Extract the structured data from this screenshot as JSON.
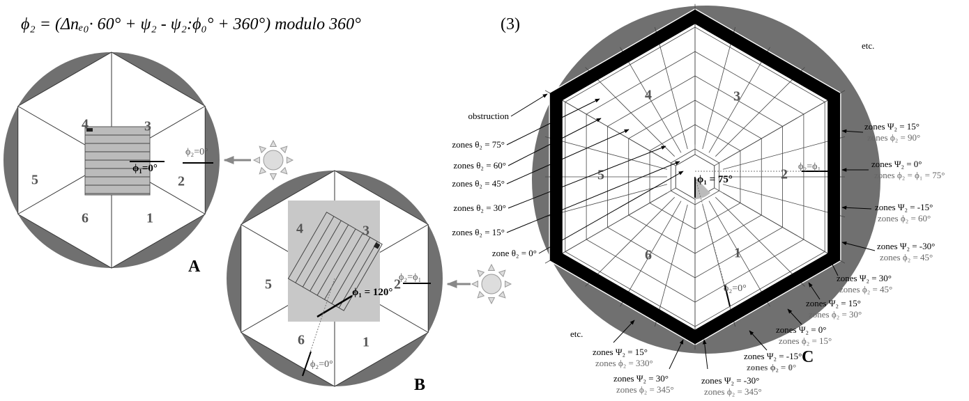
{
  "formula": {
    "expression": "ϕ₂ = (Δnₑ₀· 60° + ψ₂ - ψ₂:ϕ₀° + 360°) modulo 360°",
    "number": "(3)"
  },
  "panels": [
    {
      "letter": "A",
      "zones": [
        "1",
        "2",
        "3",
        "4",
        "5",
        "6"
      ],
      "phi1": "ϕ₁=0°",
      "phi2": "ϕ₂=0°"
    },
    {
      "letter": "B",
      "zones": [
        "1",
        "2",
        "3",
        "4",
        "5",
        "6"
      ],
      "phi1": "ϕ₁ = 120°",
      "phi2_ref": "ϕ₂=ϕ₁",
      "phi2": "ϕ₂=0°"
    },
    {
      "letter": "C",
      "zones": [
        "1",
        "2",
        "3",
        "4",
        "5",
        "6"
      ],
      "phi1": "ϕ₁ = 75°",
      "phi2_ref": "ϕ₂=ϕ₁",
      "phi2": "ϕ₂=0°",
      "left_labels": [
        "obstruction",
        "zones θ₂ = 75°",
        "zones θ₂ = 60°",
        "zones θ₂ = 45°",
        "zones θ₂ = 30°",
        "zones θ₂ = 15°",
        "zone θ₂ = 0°"
      ],
      "etc": [
        "etc.",
        "etc."
      ],
      "right_labels": [
        {
          "psi": "zones Ψ₂ = 15°",
          "phi": "zones ϕ₂ = 90°"
        },
        {
          "psi": "zones Ψ₂ = 0°",
          "phi": "zones ϕ₂ = ϕ₁ = 75°"
        },
        {
          "psi": "zones Ψ₂ = -15°",
          "phi": "zones ϕ₂ = 60°"
        },
        {
          "psi": "zones Ψ₂ = -30°",
          "phi": "zones ϕ₂ = 45°"
        },
        {
          "psi": "zones Ψ₂ = 30°",
          "phi": "zones ϕ₂ = 45°"
        },
        {
          "psi": "zones Ψ₂ = 15°",
          "phi": "zones ϕ₂ = 30°"
        },
        {
          "psi": "zones Ψ₂ = 0°",
          "phi": "zones ϕ₂ = 15°"
        },
        {
          "psi": "zones Ψ₂ = -15°",
          "phi": "zones ϕ₂ = 0°"
        },
        {
          "psi": "zones Ψ₂ = -30°",
          "phi": "zones ϕ₂ = 345°"
        },
        {
          "psi": "zones Ψ₂ = 30°",
          "phi": "zones ϕ₂ = 345°"
        },
        {
          "psi": "zones Ψ₂ = 15°",
          "phi": "zones ϕ₂ = 330°"
        }
      ]
    }
  ]
}
